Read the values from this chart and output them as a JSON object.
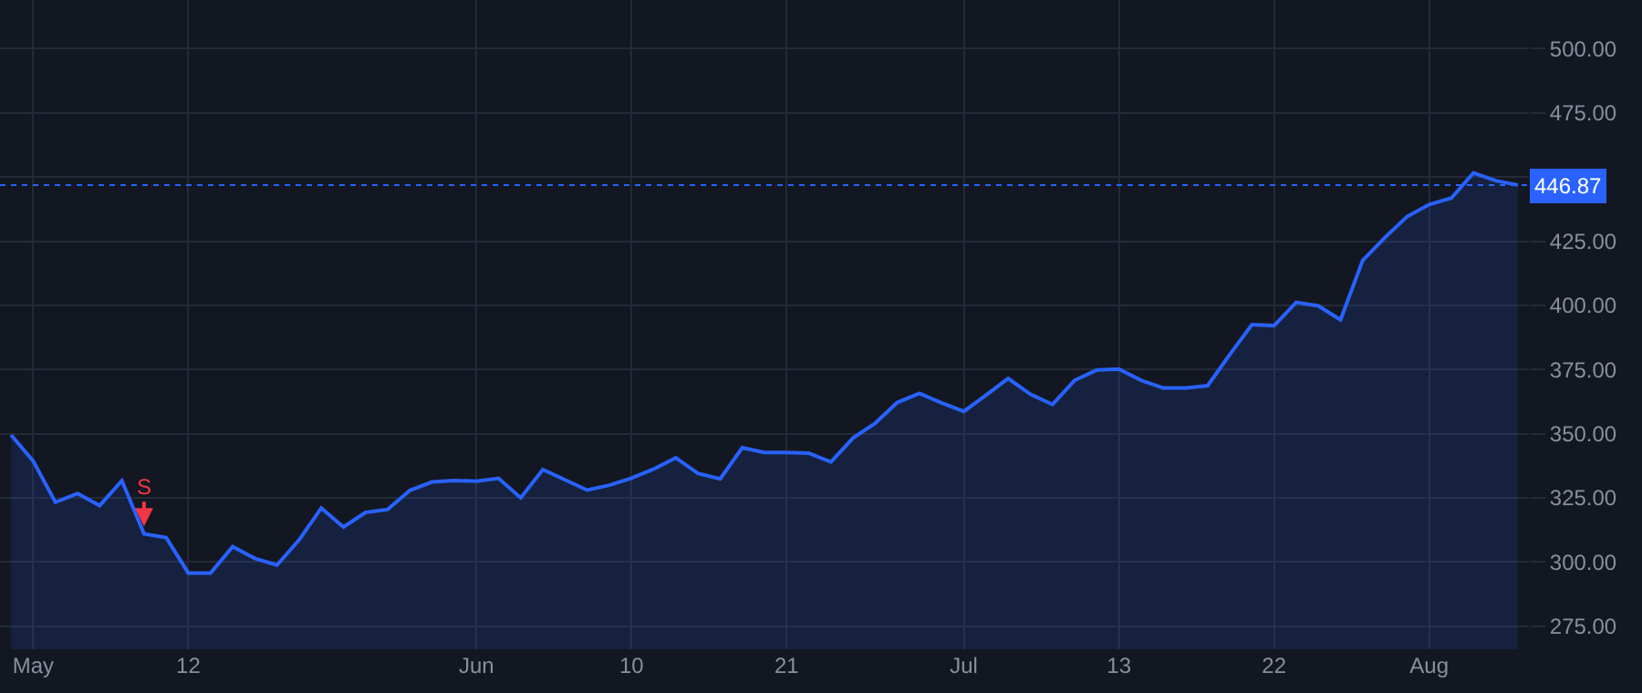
{
  "chart_data": {
    "type": "area",
    "categories": [
      null,
      "May",
      null,
      null,
      null,
      null,
      null,
      null,
      "12",
      null,
      null,
      null,
      null,
      null,
      null,
      null,
      null,
      null,
      null,
      null,
      null,
      "Jun",
      null,
      null,
      null,
      null,
      null,
      null,
      "10",
      null,
      null,
      null,
      null,
      null,
      null,
      "21",
      null,
      null,
      null,
      null,
      null,
      null,
      null,
      "Jul",
      null,
      null,
      null,
      null,
      null,
      null,
      "13",
      null,
      null,
      null,
      null,
      null,
      null,
      "22",
      null,
      null,
      null,
      null,
      null,
      null,
      "Aug",
      null,
      null,
      null,
      null
    ],
    "series": [
      {
        "color": "#2962ff",
        "values": [
          349.5,
          339.3,
          323.3,
          326.7,
          322,
          331.7,
          311,
          309.5,
          295.7,
          295.7,
          306,
          301.4,
          298.8,
          308.6,
          321,
          313.6,
          319.3,
          320.5,
          327.9,
          331.2,
          331.7,
          331.5,
          332.6,
          325,
          336,
          332,
          328,
          329.9,
          332.7,
          336.2,
          340.6,
          334.5,
          332.4,
          344.5,
          342.7,
          342.7,
          342.4,
          339,
          348.3,
          354.1,
          362.2,
          365.7,
          362,
          358.7,
          365,
          371.5,
          365.4,
          361.4,
          370.8,
          374.8,
          375.2,
          370.8,
          367.8,
          367.8,
          368.7,
          380.8,
          392.5,
          392.1,
          401.2,
          399.8,
          394.4,
          417.5,
          426.4,
          434.6,
          439.3,
          441.8,
          451.6,
          448.6,
          446.9
        ]
      }
    ],
    "ylim": [
      266,
      519
    ],
    "yticks": [
      {
        "value": 275,
        "label": "275.00"
      },
      {
        "value": 300,
        "label": "300.00"
      },
      {
        "value": 325,
        "label": "325.00"
      },
      {
        "value": 350,
        "label": "350.00"
      },
      {
        "value": 375,
        "label": "375.00"
      },
      {
        "value": 400,
        "label": "400.00"
      },
      {
        "value": 425,
        "label": "425.00"
      },
      {
        "value": 450,
        "label": null
      },
      {
        "value": 475,
        "label": "475.00"
      },
      {
        "value": 500,
        "label": "500.00"
      }
    ],
    "ref_lines": [
      {
        "axis": "y",
        "value": 446.87,
        "label": "446.87",
        "color": "#2962ff",
        "line_style": "dotted"
      }
    ],
    "annotations": [
      {
        "text": "S",
        "y": 311
      }
    ],
    "grid": true
  }
}
